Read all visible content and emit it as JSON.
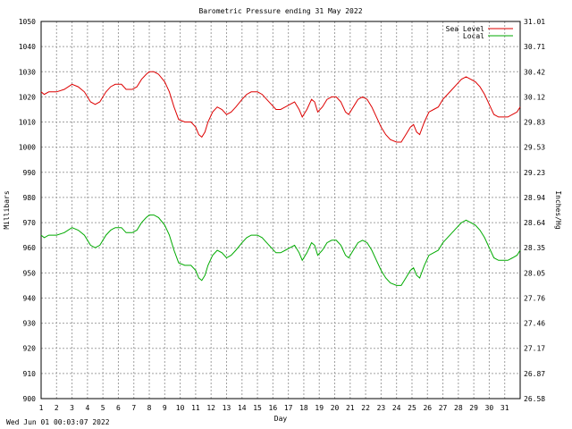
{
  "footer_timestamp": "Wed Jun 01 00:03:07 2022",
  "chart_data": {
    "type": "line",
    "title": "Barometric Pressure ending 31 May 2022",
    "xlabel": "Day",
    "ylabel": "Millibars",
    "y2label": "Inches/Hg",
    "xlim": [
      1,
      32
    ],
    "ylim": [
      900,
      1050
    ],
    "x_ticks": [
      "1",
      "2",
      "3",
      "4",
      "5",
      "6",
      "7",
      "8",
      "9",
      "10",
      "11",
      "12",
      "13",
      "14",
      "15",
      "16",
      "17",
      "18",
      "19",
      "20",
      "21",
      "22",
      "23",
      "24",
      "25",
      "26",
      "27",
      "28",
      "29",
      "30",
      "31"
    ],
    "y_ticks": [
      900,
      910,
      920,
      930,
      940,
      950,
      960,
      970,
      980,
      990,
      1000,
      1010,
      1020,
      1030,
      1040,
      1050
    ],
    "y2_ticks": [
      "26.58",
      "26.87",
      "27.17",
      "27.46",
      "27.76",
      "28.05",
      "28.35",
      "28.64",
      "28.94",
      "29.23",
      "29.53",
      "29.83",
      "30.12",
      "30.42",
      "30.71",
      "31.01"
    ],
    "grid": true,
    "legend_position": "top-right",
    "series": [
      {
        "name": "Sea Level",
        "color": "#dd0000",
        "points": [
          [
            1.0,
            1022
          ],
          [
            1.2,
            1021
          ],
          [
            1.5,
            1022
          ],
          [
            2.0,
            1022
          ],
          [
            2.5,
            1023
          ],
          [
            3.0,
            1025
          ],
          [
            3.4,
            1024
          ],
          [
            3.8,
            1022
          ],
          [
            4.2,
            1018
          ],
          [
            4.5,
            1017
          ],
          [
            4.8,
            1018
          ],
          [
            5.2,
            1022
          ],
          [
            5.5,
            1024
          ],
          [
            5.8,
            1025
          ],
          [
            6.2,
            1025
          ],
          [
            6.5,
            1023
          ],
          [
            6.9,
            1023
          ],
          [
            7.2,
            1024
          ],
          [
            7.5,
            1027
          ],
          [
            7.8,
            1029
          ],
          [
            8.0,
            1030
          ],
          [
            8.3,
            1030
          ],
          [
            8.6,
            1029
          ],
          [
            9.0,
            1026
          ],
          [
            9.3,
            1022
          ],
          [
            9.6,
            1016
          ],
          [
            9.9,
            1011
          ],
          [
            10.3,
            1010
          ],
          [
            10.7,
            1010
          ],
          [
            11.0,
            1008
          ],
          [
            11.2,
            1005
          ],
          [
            11.4,
            1004
          ],
          [
            11.6,
            1006
          ],
          [
            11.8,
            1010
          ],
          [
            12.1,
            1014
          ],
          [
            12.4,
            1016
          ],
          [
            12.7,
            1015
          ],
          [
            13.0,
            1013
          ],
          [
            13.3,
            1014
          ],
          [
            13.6,
            1016
          ],
          [
            14.0,
            1019
          ],
          [
            14.3,
            1021
          ],
          [
            14.6,
            1022
          ],
          [
            15.0,
            1022
          ],
          [
            15.3,
            1021
          ],
          [
            15.6,
            1019
          ],
          [
            15.9,
            1017
          ],
          [
            16.2,
            1015
          ],
          [
            16.5,
            1015
          ],
          [
            16.8,
            1016
          ],
          [
            17.1,
            1017
          ],
          [
            17.4,
            1018
          ],
          [
            17.7,
            1015
          ],
          [
            17.9,
            1012
          ],
          [
            18.2,
            1015
          ],
          [
            18.5,
            1019
          ],
          [
            18.7,
            1018
          ],
          [
            18.9,
            1014
          ],
          [
            19.2,
            1016
          ],
          [
            19.5,
            1019
          ],
          [
            19.8,
            1020
          ],
          [
            20.1,
            1020
          ],
          [
            20.4,
            1018
          ],
          [
            20.7,
            1014
          ],
          [
            20.9,
            1013
          ],
          [
            21.2,
            1016
          ],
          [
            21.5,
            1019
          ],
          [
            21.8,
            1020
          ],
          [
            22.1,
            1019
          ],
          [
            22.4,
            1016
          ],
          [
            22.7,
            1012
          ],
          [
            23.0,
            1008
          ],
          [
            23.3,
            1005
          ],
          [
            23.6,
            1003
          ],
          [
            24.0,
            1002
          ],
          [
            24.3,
            1002
          ],
          [
            24.6,
            1005
          ],
          [
            24.9,
            1008
          ],
          [
            25.1,
            1009
          ],
          [
            25.3,
            1006
          ],
          [
            25.5,
            1005
          ],
          [
            25.8,
            1010
          ],
          [
            26.1,
            1014
          ],
          [
            26.4,
            1015
          ],
          [
            26.7,
            1016
          ],
          [
            27.0,
            1019
          ],
          [
            27.3,
            1021
          ],
          [
            27.6,
            1023
          ],
          [
            27.9,
            1025
          ],
          [
            28.2,
            1027
          ],
          [
            28.5,
            1028
          ],
          [
            28.8,
            1027
          ],
          [
            29.1,
            1026
          ],
          [
            29.4,
            1024
          ],
          [
            29.7,
            1021
          ],
          [
            30.0,
            1017
          ],
          [
            30.3,
            1013
          ],
          [
            30.6,
            1012
          ],
          [
            30.9,
            1012
          ],
          [
            31.2,
            1012
          ],
          [
            31.5,
            1013
          ],
          [
            31.8,
            1014
          ],
          [
            32.0,
            1016
          ]
        ]
      },
      {
        "name": "Local",
        "color": "#00aa00",
        "points": [
          [
            1.0,
            965
          ],
          [
            1.2,
            964
          ],
          [
            1.5,
            965
          ],
          [
            2.0,
            965
          ],
          [
            2.5,
            966
          ],
          [
            3.0,
            968
          ],
          [
            3.4,
            967
          ],
          [
            3.8,
            965
          ],
          [
            4.2,
            961
          ],
          [
            4.5,
            960
          ],
          [
            4.8,
            961
          ],
          [
            5.2,
            965
          ],
          [
            5.5,
            967
          ],
          [
            5.8,
            968
          ],
          [
            6.2,
            968
          ],
          [
            6.5,
            966
          ],
          [
            6.9,
            966
          ],
          [
            7.2,
            967
          ],
          [
            7.5,
            970
          ],
          [
            7.8,
            972
          ],
          [
            8.0,
            973
          ],
          [
            8.3,
            973
          ],
          [
            8.6,
            972
          ],
          [
            9.0,
            969
          ],
          [
            9.3,
            965
          ],
          [
            9.6,
            959
          ],
          [
            9.9,
            954
          ],
          [
            10.3,
            953
          ],
          [
            10.7,
            953
          ],
          [
            11.0,
            951
          ],
          [
            11.2,
            948
          ],
          [
            11.4,
            947
          ],
          [
            11.6,
            949
          ],
          [
            11.8,
            953
          ],
          [
            12.1,
            957
          ],
          [
            12.4,
            959
          ],
          [
            12.7,
            958
          ],
          [
            13.0,
            956
          ],
          [
            13.3,
            957
          ],
          [
            13.6,
            959
          ],
          [
            14.0,
            962
          ],
          [
            14.3,
            964
          ],
          [
            14.6,
            965
          ],
          [
            15.0,
            965
          ],
          [
            15.3,
            964
          ],
          [
            15.6,
            962
          ],
          [
            15.9,
            960
          ],
          [
            16.2,
            958
          ],
          [
            16.5,
            958
          ],
          [
            16.8,
            959
          ],
          [
            17.1,
            960
          ],
          [
            17.4,
            961
          ],
          [
            17.7,
            958
          ],
          [
            17.9,
            955
          ],
          [
            18.2,
            958
          ],
          [
            18.5,
            962
          ],
          [
            18.7,
            961
          ],
          [
            18.9,
            957
          ],
          [
            19.2,
            959
          ],
          [
            19.5,
            962
          ],
          [
            19.8,
            963
          ],
          [
            20.1,
            963
          ],
          [
            20.4,
            961
          ],
          [
            20.7,
            957
          ],
          [
            20.9,
            956
          ],
          [
            21.2,
            959
          ],
          [
            21.5,
            962
          ],
          [
            21.8,
            963
          ],
          [
            22.1,
            962
          ],
          [
            22.4,
            959
          ],
          [
            22.7,
            955
          ],
          [
            23.0,
            951
          ],
          [
            23.3,
            948
          ],
          [
            23.6,
            946
          ],
          [
            24.0,
            945
          ],
          [
            24.3,
            945
          ],
          [
            24.6,
            948
          ],
          [
            24.9,
            951
          ],
          [
            25.1,
            952
          ],
          [
            25.3,
            949
          ],
          [
            25.5,
            948
          ],
          [
            25.8,
            953
          ],
          [
            26.1,
            957
          ],
          [
            26.4,
            958
          ],
          [
            26.7,
            959
          ],
          [
            27.0,
            962
          ],
          [
            27.3,
            964
          ],
          [
            27.6,
            966
          ],
          [
            27.9,
            968
          ],
          [
            28.2,
            970
          ],
          [
            28.5,
            971
          ],
          [
            28.8,
            970
          ],
          [
            29.1,
            969
          ],
          [
            29.4,
            967
          ],
          [
            29.7,
            964
          ],
          [
            30.0,
            960
          ],
          [
            30.3,
            956
          ],
          [
            30.6,
            955
          ],
          [
            30.9,
            955
          ],
          [
            31.2,
            955
          ],
          [
            31.5,
            956
          ],
          [
            31.8,
            957
          ],
          [
            32.0,
            959
          ]
        ]
      }
    ]
  }
}
